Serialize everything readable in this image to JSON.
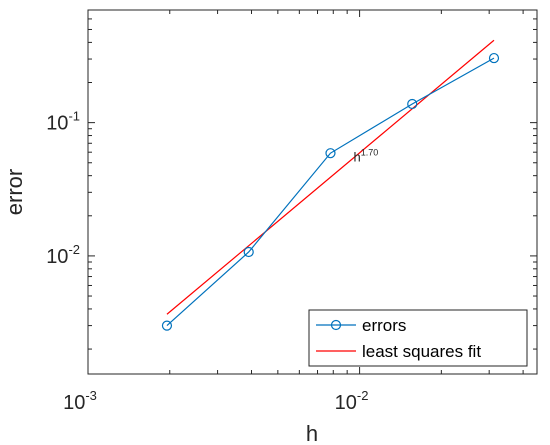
{
  "chart_data": {
    "type": "line",
    "xlabel": "h",
    "ylabel": "error",
    "xscale": "log",
    "yscale": "log",
    "xlim": [
      0.001,
      0.045
    ],
    "ylim": [
      0.0013,
      0.7
    ],
    "grid": false,
    "legend_position": "bottom-right",
    "x_ticks": [
      {
        "value": 0.001,
        "base": "10",
        "exp": "-3"
      },
      {
        "value": 0.01,
        "base": "10",
        "exp": "-2"
      }
    ],
    "y_ticks": [
      {
        "value": 0.01,
        "base": "10",
        "exp": "-2"
      },
      {
        "value": 0.1,
        "base": "10",
        "exp": "-1"
      }
    ],
    "series": [
      {
        "name": "errors",
        "color": "#0072BD",
        "marker": "circle",
        "x": [
          0.001953,
          0.003906,
          0.007813,
          0.015625,
          0.03125
        ],
        "y": [
          0.003,
          0.0107,
          0.059,
          0.138,
          0.305
        ]
      },
      {
        "name": "least squares fit",
        "color": "#FF0000",
        "marker": "none",
        "x": [
          0.001953,
          0.03125
        ],
        "y": [
          0.00365,
          0.415
        ]
      }
    ],
    "annotations": [
      {
        "base": "h",
        "exp": "1.70",
        "x": 0.0095,
        "y": 0.051
      }
    ]
  }
}
